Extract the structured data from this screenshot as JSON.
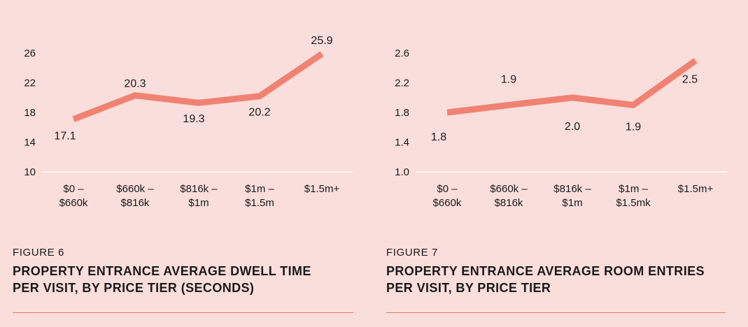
{
  "chart_data": [
    {
      "type": "line",
      "figure_label": "FIGURE 6",
      "title": "PROPERTY ENTRANCE AVERAGE DWELL TIME PER VISIT, BY PRICE TIER (SECONDS)",
      "categories": [
        [
          "$0 –",
          "$660k"
        ],
        [
          "$660k –",
          "$816k"
        ],
        [
          "$816k –",
          "$1m"
        ],
        [
          "$1m –",
          "$1.5m"
        ],
        [
          "$1.5m+"
        ]
      ],
      "values": [
        17.1,
        20.3,
        19.3,
        20.2,
        25.9
      ],
      "data_labels": [
        "17.1",
        "20.3",
        "19.3",
        "20.2",
        "25.9"
      ],
      "yticks": [
        10,
        14,
        18,
        22,
        26
      ],
      "ytick_labels": [
        "10",
        "14",
        "18",
        "22",
        "26"
      ],
      "ylim": [
        10,
        28
      ],
      "line_color": "#f08272"
    },
    {
      "type": "line",
      "figure_label": "FIGURE 7",
      "title": "PROPERTY ENTRANCE AVERAGE ROOM ENTRIES PER VISIT, BY PRICE TIER",
      "categories": [
        [
          "$0 –",
          "$660k"
        ],
        [
          "$660k –",
          "$816k"
        ],
        [
          "$816k –",
          "$1m"
        ],
        [
          "$1m –",
          "$1.5mk"
        ],
        [
          "$1.5m+"
        ]
      ],
      "values": [
        1.8,
        1.9,
        2.0,
        1.9,
        2.5
      ],
      "data_labels": [
        "1.8",
        "1.9",
        "2.0",
        "1.9",
        "2.5"
      ],
      "yticks": [
        1.0,
        1.4,
        1.8,
        2.2,
        2.6
      ],
      "ytick_labels": [
        "1.0",
        "1.4",
        "1.8",
        "2.2",
        "2.6"
      ],
      "ylim": [
        1.0,
        2.8
      ],
      "line_color": "#f08272"
    }
  ]
}
